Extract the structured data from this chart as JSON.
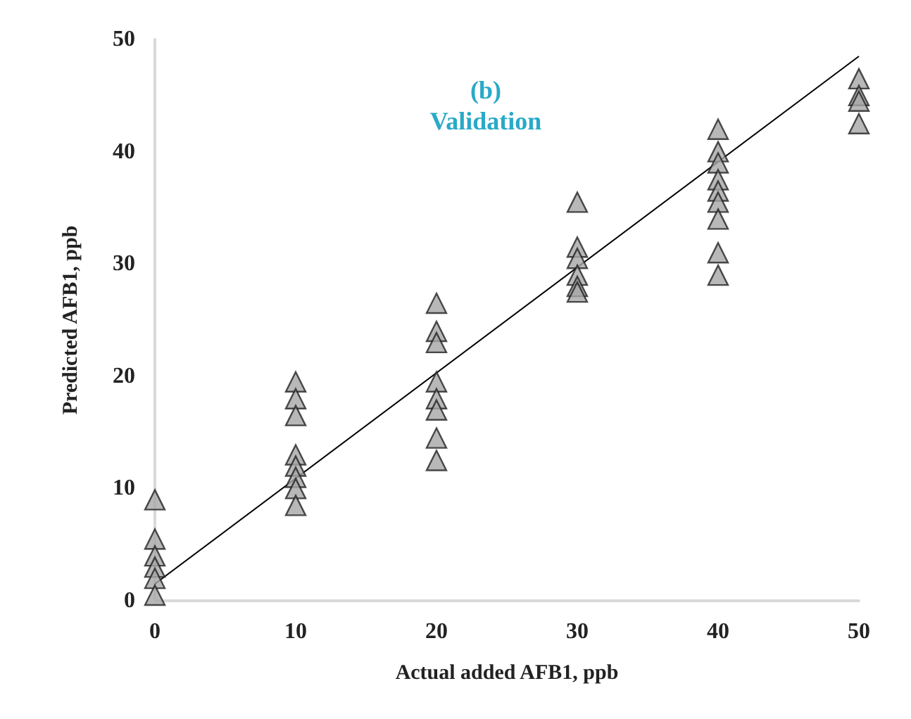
{
  "chart_data": {
    "type": "scatter",
    "title": "(b)",
    "subtitle": "Validation",
    "xlabel": "Actual added AFB1, ppb",
    "ylabel": "Predicted AFB1, ppb",
    "xlim": [
      0,
      50
    ],
    "ylim": [
      0,
      50
    ],
    "xticks": [
      0,
      10,
      20,
      30,
      40,
      50
    ],
    "yticks": [
      0,
      10,
      20,
      30,
      40,
      50
    ],
    "grid": false,
    "marker": "triangle",
    "series": [
      {
        "color": "#a6a6a6",
        "x": [
          0,
          0,
          0,
          0,
          0,
          0,
          10,
          10,
          10,
          10,
          10,
          10,
          10,
          10,
          20,
          20,
          20,
          20,
          20,
          20,
          20,
          20,
          30,
          30,
          30,
          30,
          30,
          30,
          40,
          40,
          40,
          40,
          40,
          40,
          40,
          40,
          40,
          50,
          50,
          50,
          50
        ],
        "values": [
          9,
          5.5,
          4,
          3,
          2,
          0.5,
          19.5,
          18,
          16.5,
          13,
          12,
          11,
          10,
          8.5,
          26.5,
          24,
          23,
          19.5,
          18,
          17,
          14.5,
          12.5,
          35.5,
          31.5,
          30.5,
          29,
          28,
          27.5,
          42,
          40,
          39,
          37.5,
          36.5,
          35.5,
          34,
          31,
          29,
          46.5,
          45,
          44.5,
          42.5
        ]
      },
      {
        "type": "line",
        "color": "#000000",
        "marker": "none",
        "line_style": "solid",
        "x": [
          0,
          50
        ],
        "values": [
          1.5,
          48.5
        ]
      }
    ]
  }
}
